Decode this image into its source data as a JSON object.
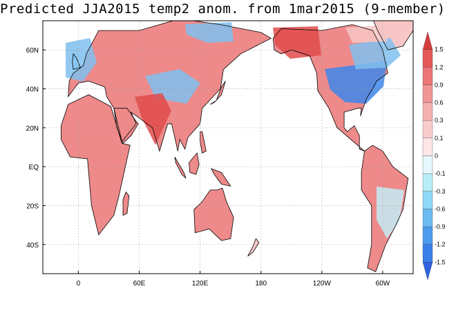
{
  "title": "Predicted JJA2015 temp2 anom. from 1mar2015 (9-member)",
  "map": {
    "projection": "cylindrical",
    "lon_range": [
      -35,
      330
    ],
    "lat_range": [
      -55,
      75
    ],
    "lat_ticks": [
      {
        "lat": 60,
        "label": "60N"
      },
      {
        "lat": 40,
        "label": "40N"
      },
      {
        "lat": 20,
        "label": "20N"
      },
      {
        "lat": 0,
        "label": "EQ"
      },
      {
        "lat": -20,
        "label": "20S"
      },
      {
        "lat": -40,
        "label": "40S"
      }
    ],
    "lon_ticks": [
      {
        "lon": 0,
        "label": "0"
      },
      {
        "lon": 60,
        "label": "60E"
      },
      {
        "lon": 120,
        "label": "120E"
      },
      {
        "lon": 180,
        "label": "180"
      },
      {
        "lon": 240,
        "label": "120W"
      },
      {
        "lon": 300,
        "label": "60W"
      }
    ],
    "grid": "dotted",
    "colors": {
      "warm_strong": "#e04a4a",
      "warm": "#ee8a8a",
      "warm_light": "#f8c6c6",
      "neutral": "#ffffff",
      "cool_light": "#c4ecf6",
      "cool": "#7fc0ee",
      "cool_strong": "#3e86ea",
      "coast": "#000000"
    }
  },
  "colorbar": {
    "levels": [
      "1.5",
      "1.2",
      "0.9",
      "0.6",
      "0.3",
      "0.1",
      "0",
      "-0.1",
      "-0.3",
      "-0.6",
      "-0.9",
      "-1.2",
      "-1.5"
    ],
    "colors": [
      "#d63d3d",
      "#e45858",
      "#ec7575",
      "#f19494",
      "#f5b0b0",
      "#f9cccc",
      "#fce6e6",
      "#e4f7fc",
      "#b8edf8",
      "#8ed8f6",
      "#6cbcf2",
      "#4e9cee",
      "#3b7fe9",
      "#2d63e0"
    ],
    "position": "right",
    "ends": "arrows"
  }
}
